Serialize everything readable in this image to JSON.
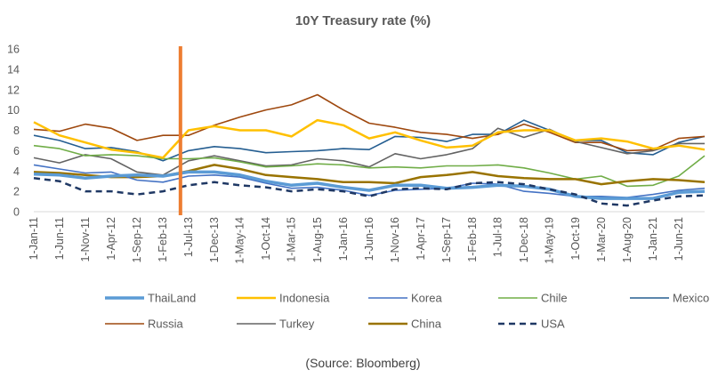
{
  "source": "(Source: Bloomberg)",
  "colors": {
    "ThaiLand": "#5b9bd5",
    "Indonesia": "#ffc000",
    "Korea": "#4472c4",
    "Chile": "#70ad47",
    "Mexico": "#255e91",
    "Russia": "#9e480e",
    "Turkey": "#636363",
    "China": "#997300",
    "USA": "#1f3864",
    "marker": "#ed7d31"
  },
  "chart_data": {
    "type": "line",
    "title": "10Y Treasury rate (%)",
    "ylim": [
      0,
      16
    ],
    "yticks": [
      0,
      2,
      4,
      6,
      8,
      10,
      12,
      14,
      16
    ],
    "xlim": [
      "2011-01-01",
      "2021-11-01"
    ],
    "xticks": [
      "1-Jan-11",
      "1-Jun-11",
      "1-Nov-11",
      "1-Apr-12",
      "1-Sep-12",
      "1-Feb-13",
      "1-Jul-13",
      "1-Dec-13",
      "1-May-14",
      "1-Oct-14",
      "1-Mar-15",
      "1-Aug-15",
      "1-Jan-16",
      "1-Jun-16",
      "1-Nov-16",
      "1-Apr-17",
      "1-Sep-17",
      "1-Feb-18",
      "1-Jul-18",
      "1-Dec-18",
      "1-May-19",
      "1-Oct-19",
      "1-Mar-20",
      "1-Aug-20",
      "1-Jan-21",
      "1-Jun-21"
    ],
    "grid": false,
    "legend": "bottom",
    "vertical_marker": "2013-05-15",
    "x": [
      "2011-01",
      "2011-06",
      "2011-11",
      "2012-04",
      "2012-09",
      "2013-02",
      "2013-07",
      "2013-12",
      "2014-05",
      "2014-10",
      "2015-03",
      "2015-08",
      "2016-01",
      "2016-06",
      "2016-11",
      "2017-04",
      "2017-09",
      "2018-02",
      "2018-07",
      "2018-12",
      "2019-05",
      "2019-10",
      "2020-03",
      "2020-08",
      "2021-01",
      "2021-06",
      "2021-11"
    ],
    "series": [
      {
        "name": "ThaiLand",
        "values": [
          3.7,
          3.6,
          3.3,
          3.5,
          3.6,
          3.5,
          3.9,
          3.9,
          3.6,
          3.0,
          2.6,
          2.8,
          2.4,
          2.1,
          2.6,
          2.6,
          2.3,
          2.4,
          2.6,
          2.5,
          2.2,
          1.5,
          1.3,
          1.3,
          1.3,
          1.9,
          2.0
        ]
      },
      {
        "name": "Indonesia",
        "values": [
          8.8,
          7.5,
          6.8,
          6.1,
          5.8,
          5.3,
          8.0,
          8.4,
          8.0,
          8.0,
          7.4,
          9.0,
          8.5,
          7.2,
          7.8,
          7.0,
          6.3,
          6.5,
          7.8,
          8.0,
          8.0,
          7.0,
          7.2,
          6.9,
          6.2,
          6.5,
          6.1
        ]
      },
      {
        "name": "Korea",
        "values": [
          4.6,
          4.2,
          3.8,
          3.9,
          3.1,
          2.9,
          3.5,
          3.6,
          3.4,
          2.8,
          2.3,
          2.4,
          2.1,
          1.6,
          2.1,
          2.2,
          2.3,
          2.8,
          2.7,
          2.0,
          1.8,
          1.5,
          1.5,
          1.4,
          1.7,
          2.1,
          2.3
        ]
      },
      {
        "name": "Chile",
        "values": [
          6.5,
          6.2,
          5.5,
          5.6,
          5.5,
          5.2,
          5.2,
          5.3,
          4.9,
          4.4,
          4.5,
          4.7,
          4.6,
          4.3,
          4.4,
          4.3,
          4.5,
          4.5,
          4.6,
          4.3,
          3.8,
          3.2,
          3.5,
          2.5,
          2.6,
          3.5,
          5.5
        ]
      },
      {
        "name": "Mexico",
        "values": [
          7.5,
          7.0,
          6.2,
          6.3,
          5.9,
          5.0,
          6.0,
          6.4,
          6.2,
          5.8,
          5.9,
          6.0,
          6.2,
          6.1,
          7.4,
          7.3,
          6.9,
          7.6,
          7.6,
          9.0,
          8.0,
          7.0,
          7.0,
          5.8,
          5.6,
          6.8,
          7.4
        ]
      },
      {
        "name": "Russia",
        "values": [
          8.1,
          7.9,
          8.6,
          8.2,
          7.0,
          7.5,
          7.5,
          8.5,
          9.3,
          10.0,
          10.5,
          11.5,
          10.0,
          8.7,
          8.3,
          7.8,
          7.6,
          7.2,
          7.6,
          8.6,
          7.8,
          6.8,
          6.8,
          6.0,
          6.1,
          7.2,
          7.4
        ]
      },
      {
        "name": "Turkey",
        "values": [
          5.3,
          4.8,
          5.6,
          5.2,
          3.9,
          3.6,
          5.0,
          5.5,
          5.0,
          4.5,
          4.6,
          5.2,
          5.0,
          4.4,
          5.7,
          5.2,
          5.6,
          6.2,
          8.2,
          7.3,
          8.1,
          6.9,
          6.3,
          5.7,
          6.0,
          6.7,
          6.7
        ]
      },
      {
        "name": "China",
        "values": [
          3.9,
          3.8,
          3.6,
          3.4,
          3.4,
          3.5,
          4.0,
          4.6,
          4.2,
          3.6,
          3.4,
          3.2,
          2.9,
          2.9,
          2.8,
          3.4,
          3.6,
          3.9,
          3.5,
          3.3,
          3.2,
          3.2,
          2.7,
          3.0,
          3.2,
          3.1,
          2.9
        ]
      },
      {
        "name": "USA",
        "values": [
          3.3,
          3.0,
          2.0,
          2.0,
          1.7,
          2.0,
          2.6,
          2.9,
          2.6,
          2.4,
          2.0,
          2.2,
          2.0,
          1.5,
          2.2,
          2.3,
          2.2,
          2.8,
          2.9,
          2.7,
          2.2,
          1.7,
          0.8,
          0.6,
          1.1,
          1.5,
          1.6
        ]
      }
    ]
  }
}
